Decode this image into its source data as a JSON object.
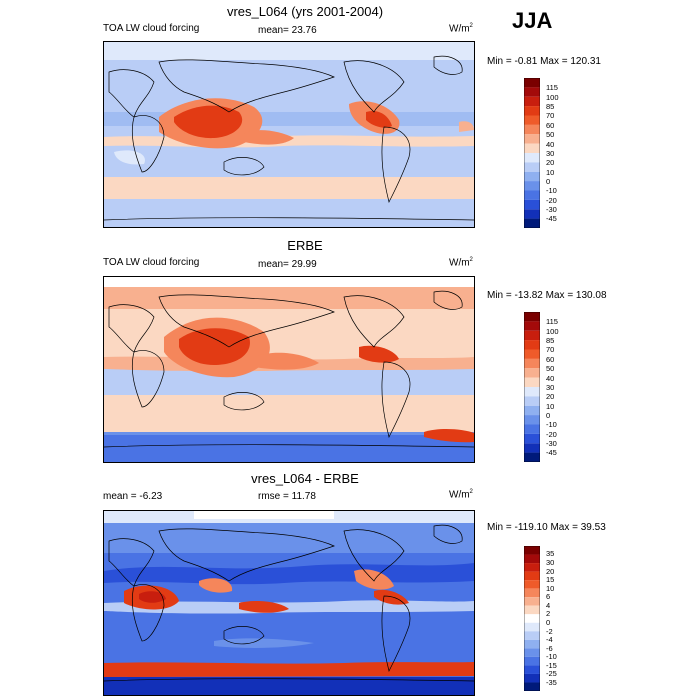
{
  "season": "JJA",
  "panels": [
    {
      "title": "vres_L064 (yrs 2001-2004)",
      "left_label": "TOA LW cloud forcing",
      "mid_label": "mean=  23.76",
      "right_label": "W/m",
      "right_label_sup": "2",
      "minmax": "Min =  -0.81 Max = 120.31",
      "colorbar_labels": [
        "115",
        "100",
        "85",
        "70",
        "60",
        "50",
        "40",
        "30",
        "20",
        "10",
        "0",
        "-10",
        "-20",
        "-30",
        "-45"
      ]
    },
    {
      "title": "ERBE",
      "left_label": "TOA LW cloud forcing",
      "mid_label": "mean=  29.99",
      "right_label": "W/m",
      "right_label_sup": "2",
      "minmax": "Min = -13.82 Max = 130.08",
      "colorbar_labels": [
        "115",
        "100",
        "85",
        "70",
        "60",
        "50",
        "40",
        "30",
        "20",
        "10",
        "0",
        "-10",
        "-20",
        "-30",
        "-45"
      ]
    },
    {
      "title": "vres_L064 - ERBE",
      "left_label": "mean =  -6.23",
      "mid_label": "rmse =  11.78",
      "right_label": "W/m",
      "right_label_sup": "2",
      "minmax": "Min = -119.10 Max =  39.53",
      "colorbar_labels": [
        "35",
        "30",
        "20",
        "15",
        "10",
        "6",
        "4",
        "2",
        "0",
        "-2",
        "-4",
        "-6",
        "-10",
        "-15",
        "-25",
        "-35"
      ]
    }
  ],
  "colors": {
    "abs_scale": [
      "#7a0000",
      "#a30a0a",
      "#c81e0e",
      "#e23b14",
      "#ef5b2a",
      "#f5865b",
      "#f8b08f",
      "#fbd8c2",
      "#dfe9fb",
      "#b9cdf6",
      "#8fb0f0",
      "#6a91ea",
      "#4a73e4",
      "#2a50d8",
      "#1230b8",
      "#001a7a"
    ],
    "diff_scale": [
      "#7a0000",
      "#a30a0a",
      "#c81e0e",
      "#e23b14",
      "#ef5b2a",
      "#f5865b",
      "#f8b08f",
      "#fbd8c2",
      "#ffffff",
      "#dfe9fb",
      "#b9cdf6",
      "#8fb0f0",
      "#6a91ea",
      "#4a73e4",
      "#2a50d8",
      "#1230b8",
      "#001a7a"
    ]
  }
}
